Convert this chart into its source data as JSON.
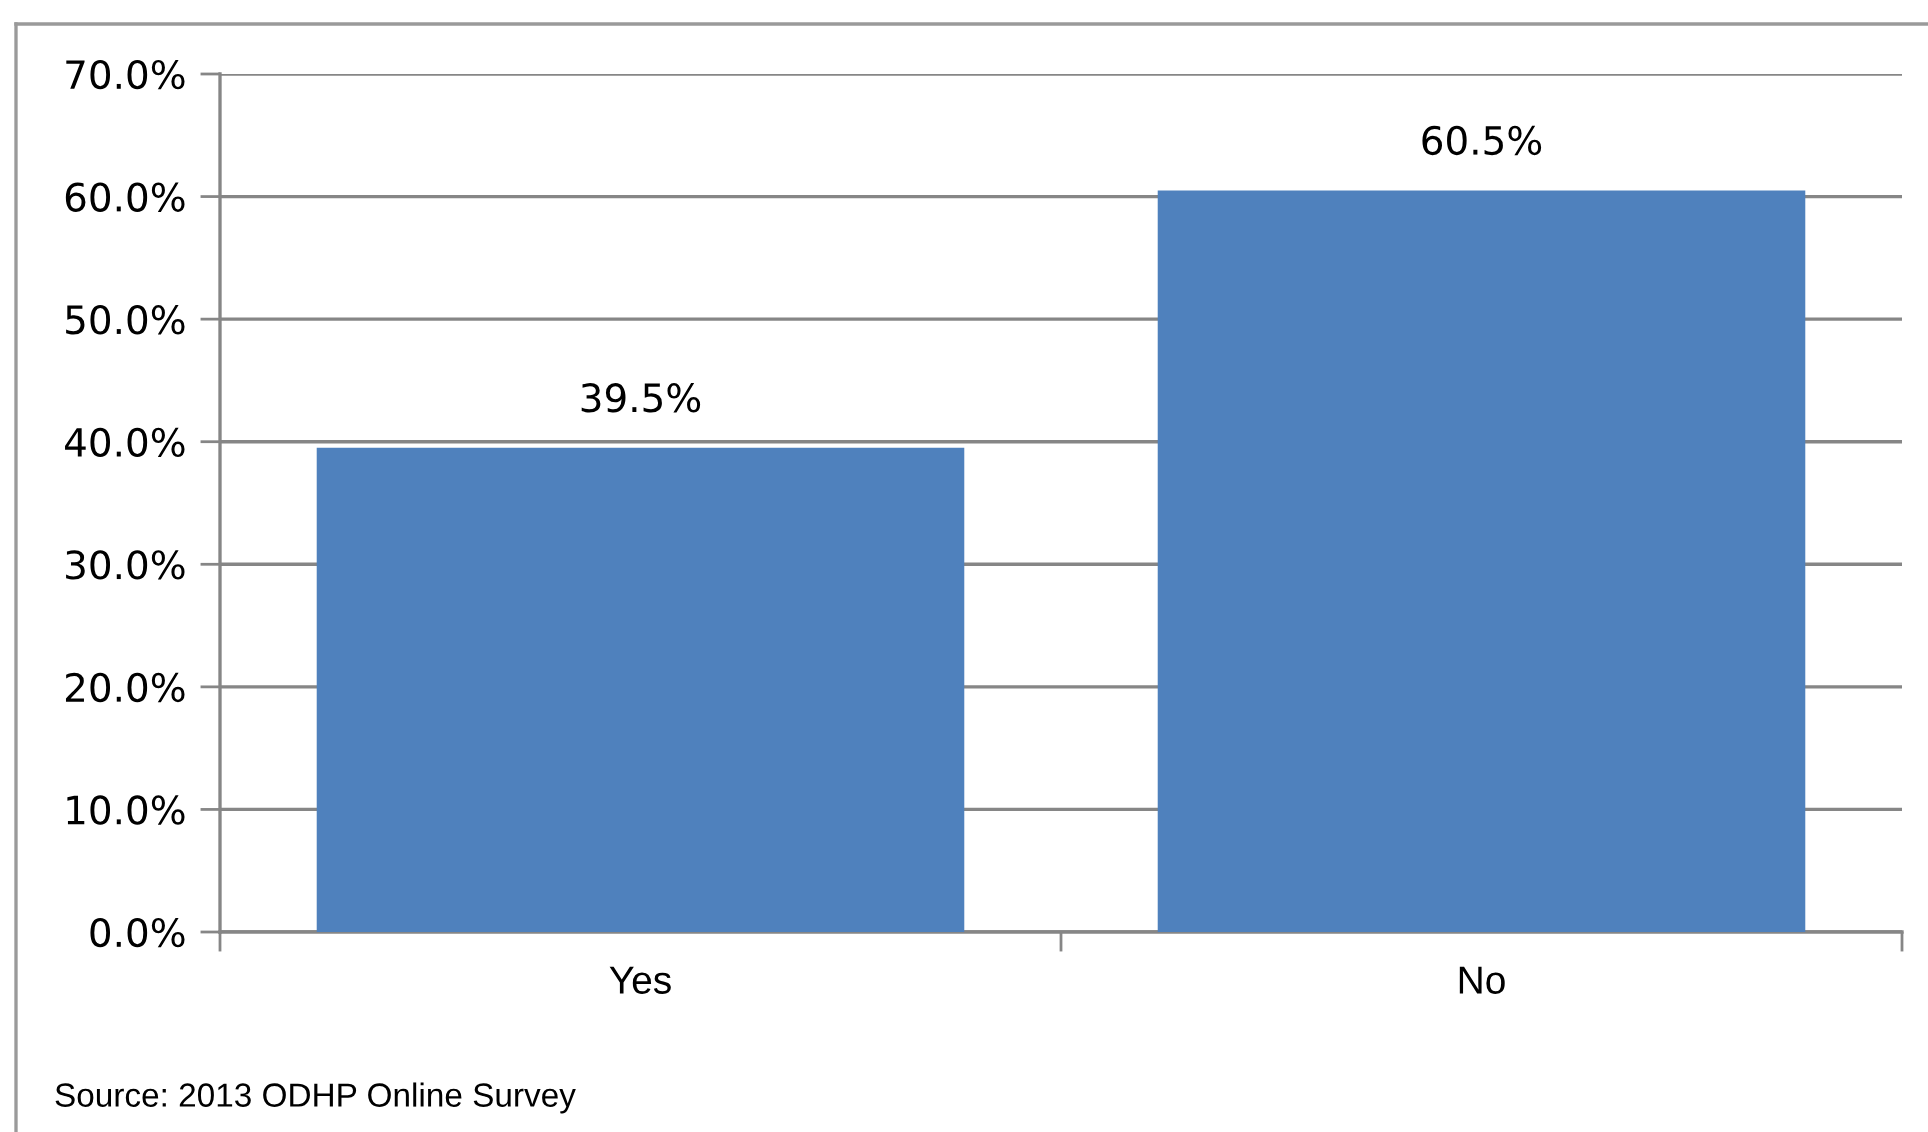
{
  "chart_data": {
    "type": "bar",
    "categories": [
      "Yes",
      "No"
    ],
    "values": [
      39.5,
      60.5
    ],
    "color": "#4f81bd",
    "value_labels": [
      "39.5%",
      "60.5%"
    ],
    "ylim": [
      0,
      70
    ],
    "yticks": [
      {
        "value": 0,
        "label": "0.0%"
      },
      {
        "value": 10,
        "label": "10.0%"
      },
      {
        "value": 20,
        "label": "20.0%"
      },
      {
        "value": 30,
        "label": "30.0%"
      },
      {
        "value": 40,
        "label": "40.0%"
      },
      {
        "value": 50,
        "label": "50.0%"
      },
      {
        "value": 60,
        "label": "60.0%"
      },
      {
        "value": 70,
        "label": "70.0%"
      }
    ],
    "grid": "y",
    "annotations": [
      "Source: 2013 ODHP Online Survey"
    ]
  }
}
